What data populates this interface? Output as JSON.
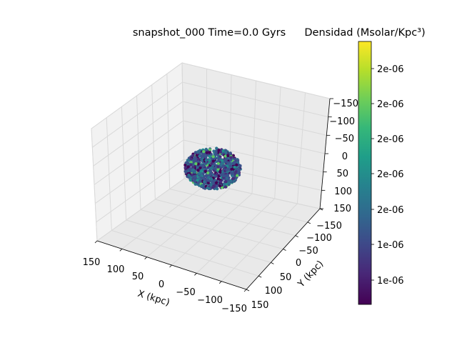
{
  "chart_data": {
    "type": "scatter",
    "projection": "3d",
    "title": "snapshot_000  Time=0.0  Gyrs",
    "xlabel": "X (kpc)",
    "ylabel": "Y (kpc)",
    "zlabel": "",
    "xlim": [
      -150,
      150
    ],
    "ylim": [
      -150,
      150
    ],
    "zlim": [
      -150,
      150
    ],
    "x_ticks": [
      "150",
      "100",
      "50",
      "0",
      "−50",
      "−100",
      "−150"
    ],
    "y_ticks": [
      "150",
      "100",
      "50",
      "0",
      "−50",
      "−100",
      "−150"
    ],
    "z_ticks": [
      "−150",
      "−100",
      "−50",
      "0",
      "50",
      "100",
      "150"
    ],
    "grid": true,
    "colormap": "viridis",
    "colorbar": {
      "label": "Densidad (Msolar/Kpc³)",
      "tick_labels": [
        "2e-06",
        "2e-06",
        "2e-06",
        "2e-06",
        "2e-06",
        "1e-06",
        "1e-06"
      ],
      "colors": [
        "#fde725",
        "#b5de2b",
        "#6ece58",
        "#35b779",
        "#1f9e89",
        "#26828e",
        "#31688e",
        "#3e4989",
        "#482878",
        "#440154"
      ]
    },
    "cluster": {
      "shape": "sphere",
      "center": [
        0,
        0,
        0
      ],
      "radius": 40,
      "description_colors": [
        "#3b528b",
        "#2c728e",
        "#440154",
        "#472d7b",
        "#21918c",
        "#5ec962"
      ]
    }
  }
}
